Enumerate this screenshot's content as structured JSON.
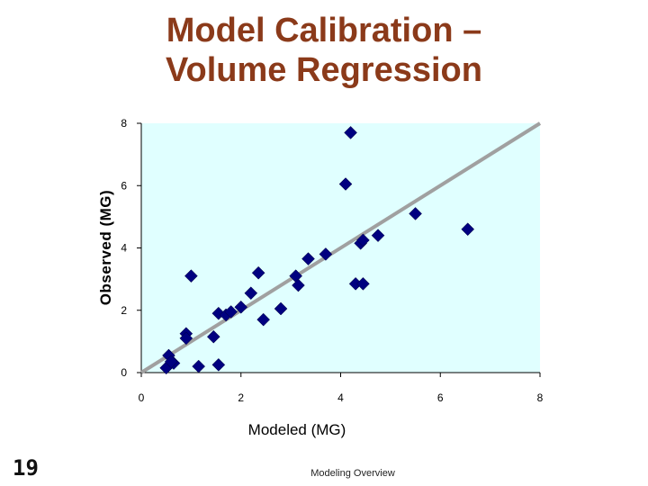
{
  "slide": {
    "title_line1": "Model Calibration –",
    "title_line2": "Volume Regression",
    "page_number": "19",
    "footer": "Modeling Overview"
  },
  "colors": {
    "title": "#8b3a1a",
    "plot_background": "#e0ffff",
    "marker": "#000080",
    "trend_line": "#a0a0a0"
  },
  "chart_data": {
    "type": "scatter",
    "title": "",
    "xlabel": "Modeled (MG)",
    "ylabel": "Observed (MG)",
    "xlim": [
      0,
      8
    ],
    "ylim": [
      0,
      8
    ],
    "xticks": [
      "0",
      "2",
      "4",
      "6",
      "8"
    ],
    "yticks": [
      "0",
      "2",
      "4",
      "6",
      "8"
    ],
    "grid": false,
    "marker": "diamond",
    "trend_line": {
      "x": [
        0,
        8
      ],
      "y": [
        0,
        8
      ]
    },
    "points": [
      {
        "x": 0.55,
        "y": 0.55
      },
      {
        "x": 0.5,
        "y": 0.15
      },
      {
        "x": 0.65,
        "y": 0.3
      },
      {
        "x": 0.6,
        "y": 0.35
      },
      {
        "x": 0.9,
        "y": 1.25
      },
      {
        "x": 0.9,
        "y": 1.1
      },
      {
        "x": 1.0,
        "y": 3.1
      },
      {
        "x": 1.15,
        "y": 0.2
      },
      {
        "x": 1.45,
        "y": 1.15
      },
      {
        "x": 1.55,
        "y": 0.25
      },
      {
        "x": 1.55,
        "y": 1.9
      },
      {
        "x": 1.7,
        "y": 1.85
      },
      {
        "x": 1.8,
        "y": 1.95
      },
      {
        "x": 2.0,
        "y": 2.1
      },
      {
        "x": 2.2,
        "y": 2.55
      },
      {
        "x": 2.35,
        "y": 3.2
      },
      {
        "x": 2.45,
        "y": 1.7
      },
      {
        "x": 2.8,
        "y": 2.05
      },
      {
        "x": 3.1,
        "y": 3.1
      },
      {
        "x": 3.15,
        "y": 2.8
      },
      {
        "x": 3.35,
        "y": 3.65
      },
      {
        "x": 3.7,
        "y": 3.8
      },
      {
        "x": 4.1,
        "y": 6.05
      },
      {
        "x": 4.2,
        "y": 7.7
      },
      {
        "x": 4.3,
        "y": 2.85
      },
      {
        "x": 4.45,
        "y": 2.85
      },
      {
        "x": 4.4,
        "y": 4.15
      },
      {
        "x": 4.45,
        "y": 4.25
      },
      {
        "x": 4.75,
        "y": 4.4
      },
      {
        "x": 5.5,
        "y": 5.1
      },
      {
        "x": 6.55,
        "y": 4.6
      }
    ]
  }
}
